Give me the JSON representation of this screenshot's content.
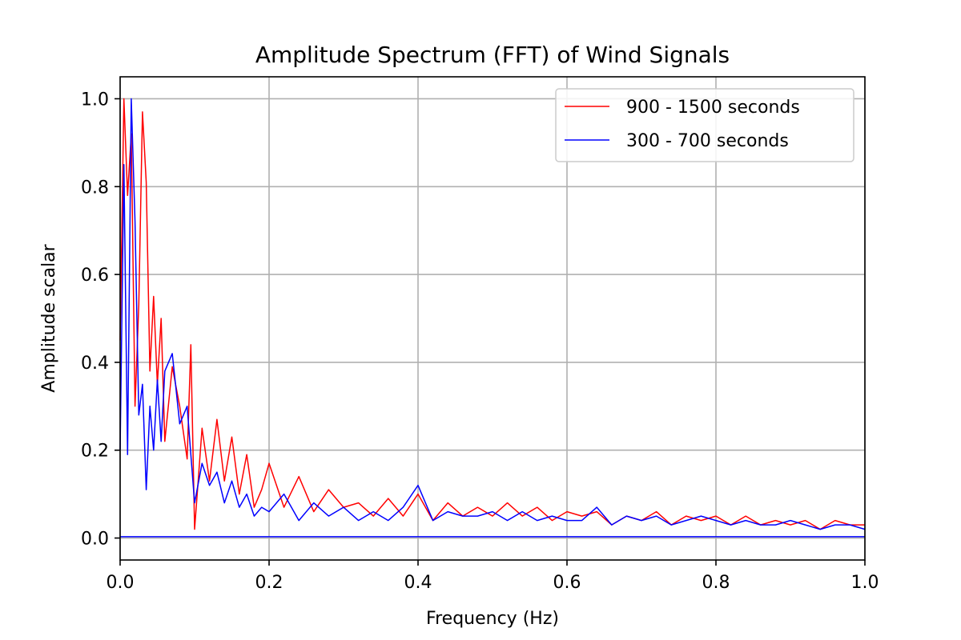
{
  "chart_data": {
    "type": "line",
    "title": "Amplitude Spectrum (FFT) of Wind Signals",
    "xlabel": "Frequency (Hz)",
    "ylabel": "Amplitude scalar",
    "xlim": [
      0.0,
      1.0
    ],
    "ylim": [
      -0.05,
      1.05
    ],
    "xticks": [
      "0.0",
      "0.2",
      "0.4",
      "0.6",
      "0.8",
      "1.0"
    ],
    "yticks": [
      "0.0",
      "0.2",
      "0.4",
      "0.6",
      "0.8",
      "1.0"
    ],
    "grid": true,
    "legend": "top-right",
    "series": [
      {
        "name": "900 - 1500 seconds",
        "color": "#ff0000",
        "x": [
          0.0,
          0.005,
          0.01,
          0.015,
          0.02,
          0.025,
          0.03,
          0.035,
          0.04,
          0.045,
          0.05,
          0.055,
          0.06,
          0.07,
          0.08,
          0.09,
          0.095,
          0.1,
          0.11,
          0.12,
          0.13,
          0.14,
          0.15,
          0.16,
          0.17,
          0.18,
          0.19,
          0.2,
          0.22,
          0.24,
          0.26,
          0.28,
          0.3,
          0.32,
          0.34,
          0.36,
          0.38,
          0.4,
          0.42,
          0.44,
          0.46,
          0.48,
          0.5,
          0.52,
          0.54,
          0.56,
          0.58,
          0.6,
          0.62,
          0.64,
          0.66,
          0.68,
          0.7,
          0.72,
          0.74,
          0.76,
          0.78,
          0.8,
          0.82,
          0.84,
          0.86,
          0.88,
          0.9,
          0.92,
          0.94,
          0.96,
          0.98,
          1.0
        ],
        "values": [
          0.45,
          1.0,
          0.78,
          0.92,
          0.3,
          0.53,
          0.97,
          0.81,
          0.38,
          0.55,
          0.35,
          0.5,
          0.22,
          0.39,
          0.3,
          0.18,
          0.44,
          0.02,
          0.25,
          0.13,
          0.27,
          0.13,
          0.23,
          0.1,
          0.19,
          0.07,
          0.11,
          0.17,
          0.07,
          0.14,
          0.06,
          0.11,
          0.07,
          0.08,
          0.05,
          0.09,
          0.05,
          0.1,
          0.04,
          0.08,
          0.05,
          0.07,
          0.05,
          0.08,
          0.05,
          0.07,
          0.04,
          0.06,
          0.05,
          0.06,
          0.03,
          0.05,
          0.04,
          0.06,
          0.03,
          0.05,
          0.04,
          0.05,
          0.03,
          0.05,
          0.03,
          0.04,
          0.03,
          0.04,
          0.02,
          0.04,
          0.03,
          0.03
        ]
      },
      {
        "name": "300 - 700 seconds",
        "color": "#0000ff",
        "x": [
          0.0,
          0.005,
          0.01,
          0.015,
          0.02,
          0.025,
          0.03,
          0.035,
          0.04,
          0.045,
          0.05,
          0.055,
          0.06,
          0.07,
          0.08,
          0.09,
          0.095,
          0.1,
          0.11,
          0.12,
          0.13,
          0.14,
          0.15,
          0.16,
          0.17,
          0.18,
          0.19,
          0.2,
          0.22,
          0.24,
          0.26,
          0.28,
          0.3,
          0.32,
          0.34,
          0.36,
          0.38,
          0.4,
          0.42,
          0.44,
          0.46,
          0.48,
          0.5,
          0.52,
          0.54,
          0.56,
          0.58,
          0.6,
          0.62,
          0.64,
          0.66,
          0.68,
          0.7,
          0.72,
          0.74,
          0.76,
          0.78,
          0.8,
          0.82,
          0.84,
          0.86,
          0.88,
          0.9,
          0.92,
          0.94,
          0.96,
          0.98,
          1.0
        ],
        "values": [
          0.2,
          0.85,
          0.19,
          1.0,
          0.72,
          0.28,
          0.35,
          0.11,
          0.3,
          0.2,
          0.36,
          0.22,
          0.38,
          0.42,
          0.26,
          0.3,
          0.19,
          0.08,
          0.17,
          0.12,
          0.15,
          0.08,
          0.13,
          0.07,
          0.1,
          0.05,
          0.07,
          0.06,
          0.1,
          0.04,
          0.08,
          0.05,
          0.07,
          0.04,
          0.06,
          0.04,
          0.07,
          0.12,
          0.04,
          0.06,
          0.05,
          0.05,
          0.06,
          0.04,
          0.06,
          0.04,
          0.05,
          0.04,
          0.04,
          0.07,
          0.03,
          0.05,
          0.04,
          0.05,
          0.03,
          0.04,
          0.05,
          0.04,
          0.03,
          0.04,
          0.03,
          0.03,
          0.04,
          0.03,
          0.02,
          0.03,
          0.03,
          0.02
        ]
      }
    ],
    "baseline": {
      "y": 0.003,
      "color": "#0000ff"
    }
  }
}
